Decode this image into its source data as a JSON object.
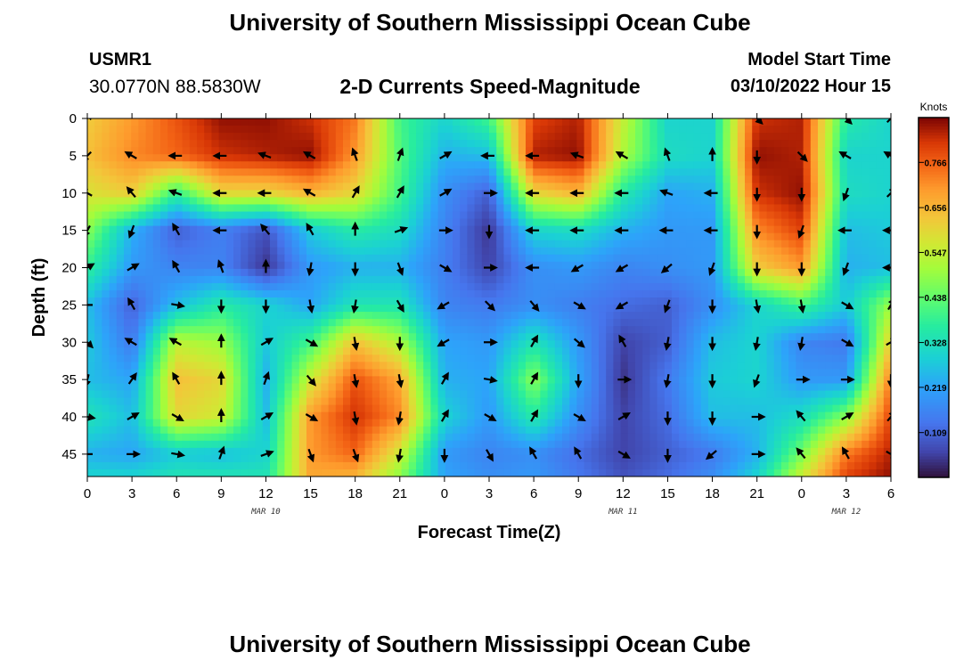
{
  "header": {
    "title": "University of Southern Mississippi Ocean Cube",
    "station_name": "USMR1",
    "station_coords": "30.0770N  88.5830W",
    "subtitle": "2-D Currents Speed-Magnitude",
    "start_label": "Model Start Time",
    "start_value": "03/10/2022 Hour 15"
  },
  "footer": {
    "title": "University of Southern Mississippi Ocean Cube"
  },
  "chart_data": {
    "type": "heatmap",
    "title": "2-D Currents Speed-Magnitude",
    "xlabel": "Forecast Time(Z)",
    "ylabel": "Depth (ft)",
    "x_tick_labels": [
      "0",
      "3",
      "6",
      "9",
      "12",
      "15",
      "18",
      "21",
      "0",
      "3",
      "6",
      "9",
      "12",
      "15",
      "18",
      "21",
      "0",
      "3",
      "6"
    ],
    "x_ticks_hours": [
      0,
      3,
      6,
      9,
      12,
      15,
      18,
      21,
      24,
      27,
      30,
      33,
      36,
      39,
      42,
      45,
      48,
      51,
      54
    ],
    "date_labels": [
      {
        "label": "MAR 10",
        "hour": 12
      },
      {
        "label": "MAR 11",
        "hour": 36
      },
      {
        "label": "MAR 12",
        "hour": 51
      }
    ],
    "xlim_hours": [
      0,
      54
    ],
    "y_ticks": [
      0,
      5,
      10,
      15,
      20,
      25,
      30,
      35,
      40,
      45
    ],
    "ylim": [
      0,
      48
    ],
    "y_inverted": true,
    "colorbar": {
      "unit": "Knots",
      "tick_values": [
        0.766,
        0.656,
        0.547,
        0.438,
        0.328,
        0.219,
        0.109
      ],
      "tick_labels": [
        "0.766",
        "0.656",
        "0.547",
        "0.438",
        "0.328",
        "0.219",
        "0.109"
      ],
      "range": [
        0.0,
        0.875
      ],
      "colormap": "turbo"
    },
    "speed_grid": {
      "x_hours": [
        0,
        3,
        6,
        9,
        12,
        15,
        18,
        21,
        24,
        27,
        30,
        33,
        36,
        39,
        42,
        45,
        48,
        51,
        54
      ],
      "depths": [
        0,
        5,
        10,
        15,
        20,
        25,
        30,
        35,
        40,
        45,
        48
      ],
      "values_knots": [
        [
          0.62,
          0.7,
          0.78,
          0.86,
          0.86,
          0.82,
          0.74,
          0.4,
          0.3,
          0.4,
          0.8,
          0.84,
          0.55,
          0.3,
          0.3,
          0.82,
          0.84,
          0.36,
          0.3
        ],
        [
          0.64,
          0.72,
          0.76,
          0.82,
          0.84,
          0.86,
          0.7,
          0.42,
          0.24,
          0.26,
          0.84,
          0.86,
          0.52,
          0.32,
          0.3,
          0.86,
          0.84,
          0.3,
          0.3
        ],
        [
          0.58,
          0.62,
          0.38,
          0.6,
          0.6,
          0.66,
          0.6,
          0.4,
          0.18,
          0.1,
          0.6,
          0.66,
          0.36,
          0.22,
          0.24,
          0.82,
          0.86,
          0.32,
          0.3
        ],
        [
          0.48,
          0.24,
          0.1,
          0.15,
          0.08,
          0.28,
          0.36,
          0.32,
          0.16,
          0.04,
          0.3,
          0.32,
          0.24,
          0.2,
          0.2,
          0.72,
          0.8,
          0.26,
          0.28
        ],
        [
          0.38,
          0.2,
          0.16,
          0.16,
          0.04,
          0.2,
          0.24,
          0.24,
          0.15,
          0.06,
          0.18,
          0.2,
          0.16,
          0.18,
          0.2,
          0.62,
          0.7,
          0.24,
          0.26
        ],
        [
          0.26,
          0.1,
          0.26,
          0.36,
          0.3,
          0.22,
          0.34,
          0.34,
          0.16,
          0.14,
          0.18,
          0.15,
          0.12,
          0.1,
          0.18,
          0.3,
          0.4,
          0.28,
          0.5
        ],
        [
          0.28,
          0.14,
          0.54,
          0.5,
          0.28,
          0.4,
          0.64,
          0.52,
          0.22,
          0.2,
          0.34,
          0.2,
          0.06,
          0.1,
          0.26,
          0.3,
          0.16,
          0.14,
          0.62
        ],
        [
          0.26,
          0.22,
          0.64,
          0.6,
          0.24,
          0.56,
          0.78,
          0.68,
          0.24,
          0.22,
          0.48,
          0.22,
          0.04,
          0.14,
          0.28,
          0.3,
          0.2,
          0.2,
          0.74
        ],
        [
          0.34,
          0.26,
          0.6,
          0.56,
          0.26,
          0.7,
          0.82,
          0.72,
          0.3,
          0.2,
          0.36,
          0.18,
          0.06,
          0.12,
          0.26,
          0.26,
          0.32,
          0.48,
          0.8
        ],
        [
          0.24,
          0.22,
          0.28,
          0.26,
          0.3,
          0.7,
          0.76,
          0.56,
          0.2,
          0.16,
          0.18,
          0.12,
          0.06,
          0.1,
          0.14,
          0.24,
          0.46,
          0.74,
          0.84
        ],
        [
          0.3,
          0.3,
          0.34,
          0.34,
          0.34,
          0.68,
          0.66,
          0.48,
          0.22,
          0.18,
          0.2,
          0.14,
          0.08,
          0.12,
          0.18,
          0.3,
          0.56,
          0.8,
          0.86
        ]
      ]
    },
    "current_vectors": {
      "depths": [
        0,
        5,
        10,
        15,
        20,
        25,
        30,
        35,
        40,
        45
      ],
      "x_hours": [
        0,
        3,
        6,
        9,
        12,
        15,
        18,
        21,
        24,
        27,
        30,
        33,
        36,
        39,
        42,
        45,
        48,
        51,
        54
      ],
      "direction_deg_clockwise_from_up": [
        [
          45,
          null,
          null,
          null,
          null,
          null,
          null,
          null,
          null,
          null,
          null,
          null,
          null,
          null,
          null,
          135,
          null,
          135,
          45
        ],
        [
          225,
          300,
          270,
          270,
          290,
          300,
          340,
          20,
          60,
          270,
          270,
          290,
          300,
          340,
          0,
          180,
          135,
          300,
          300
        ],
        [
          300,
          320,
          290,
          270,
          270,
          300,
          30,
          30,
          60,
          90,
          270,
          270,
          270,
          290,
          270,
          180,
          180,
          200,
          45
        ],
        [
          210,
          200,
          330,
          270,
          320,
          330,
          0,
          70,
          90,
          180,
          270,
          270,
          270,
          270,
          270,
          180,
          200,
          270,
          270
        ],
        [
          60,
          60,
          330,
          340,
          0,
          190,
          180,
          160,
          120,
          90,
          270,
          240,
          240,
          230,
          200,
          180,
          180,
          200,
          270
        ],
        [
          270,
          330,
          100,
          180,
          180,
          170,
          190,
          150,
          240,
          135,
          140,
          120,
          240,
          200,
          180,
          170,
          170,
          120,
          30
        ],
        [
          135,
          300,
          300,
          0,
          60,
          120,
          170,
          180,
          240,
          90,
          30,
          130,
          330,
          190,
          180,
          190,
          190,
          120,
          60
        ],
        [
          195,
          35,
          330,
          0,
          20,
          140,
          170,
          170,
          30,
          100,
          30,
          180,
          90,
          190,
          180,
          200,
          90,
          90,
          180
        ],
        [
          100,
          60,
          120,
          0,
          60,
          120,
          170,
          190,
          30,
          120,
          30,
          120,
          60,
          180,
          180,
          90,
          320,
          60,
          40
        ],
        [
          270,
          90,
          100,
          20,
          70,
          160,
          160,
          190,
          180,
          150,
          330,
          330,
          120,
          180,
          230,
          90,
          320,
          330,
          120
        ]
      ]
    }
  }
}
